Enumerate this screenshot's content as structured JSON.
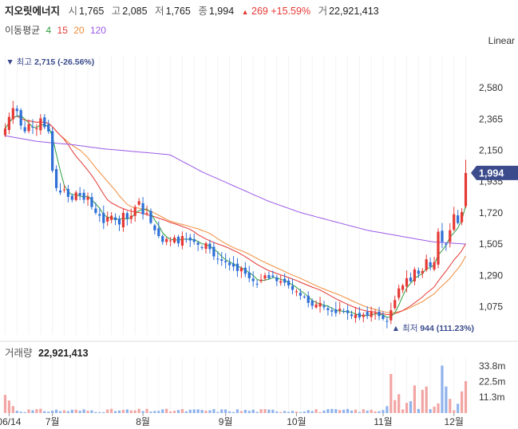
{
  "header": {
    "name": "지오릿에너지",
    "open_label": "시",
    "open": "1,765",
    "high_label": "고",
    "high": "2,085",
    "low_label": "저",
    "low": "1,765",
    "close_label": "종",
    "close": "1,994",
    "change_arrow": "▲",
    "change": "269",
    "change_pct": "+15.59%",
    "volume_label": "거",
    "volume": "22,921,413"
  },
  "ma_legend": {
    "label": "이동평균",
    "periods": [
      {
        "period": "4",
        "color": "#2e9e3f"
      },
      {
        "period": "15",
        "color": "#e53935"
      },
      {
        "period": "20",
        "color": "#f08c3a"
      },
      {
        "period": "120",
        "color": "#9b59e6"
      }
    ]
  },
  "scale_button": "Linear",
  "volume_panel": {
    "label": "거래량",
    "value": "22,921,413"
  },
  "colors": {
    "up": "#e53935",
    "down": "#2f6fd6",
    "price_tag": "#3b4b8c",
    "grid": "#eeeeee"
  },
  "chart_data": {
    "type": "candlestick",
    "price_axis": {
      "ticks": [
        1075,
        1290,
        1505,
        1720,
        1935,
        2150,
        2365,
        2580
      ],
      "labels": [
        "1,075",
        "1,290",
        "1,505",
        "1,720",
        "1,935",
        "2,150",
        "2,365",
        "2,580"
      ],
      "range": [
        880,
        2800
      ]
    },
    "x_labels": [
      {
        "label": "06/14",
        "index": 1
      },
      {
        "label": "7월",
        "index": 12
      },
      {
        "label": "8월",
        "index": 35
      },
      {
        "label": "9월",
        "index": 56
      },
      {
        "label": "10월",
        "index": 74
      },
      {
        "label": "11월",
        "index": 96
      },
      {
        "label": "12월",
        "index": 114
      }
    ],
    "high_annotation": {
      "label": "최고",
      "value": "2,715",
      "pct": "(-26.56%)",
      "index": 1,
      "price": 2715
    },
    "low_annotation": {
      "label": "최저",
      "value": "944",
      "pct": "(111.23%)",
      "index": 99,
      "price": 944
    },
    "last_price_tag": "1,994",
    "volume_axis": {
      "ticks": [
        11.3,
        22.5,
        33.8
      ],
      "labels": [
        "11.3m",
        "22.5m",
        "33.8m"
      ],
      "range": [
        0,
        40
      ]
    },
    "closes": [
      2300,
      2380,
      2440,
      2420,
      2320,
      2280,
      2330,
      2310,
      2300,
      2370,
      2310,
      2280,
      2010,
      1890,
      1860,
      1880,
      1830,
      1810,
      1860,
      1840,
      1810,
      1830,
      1760,
      1720,
      1700,
      1650,
      1690,
      1700,
      1670,
      1640,
      1720,
      1680,
      1700,
      1760,
      1800,
      1710,
      1720,
      1650,
      1600,
      1560,
      1520,
      1540,
      1530,
      1550,
      1510,
      1560,
      1540,
      1530,
      1520,
      1500,
      1480,
      1510,
      1470,
      1420,
      1400,
      1390,
      1380,
      1360,
      1350,
      1320,
      1340,
      1300,
      1270,
      1250,
      1230,
      1260,
      1290,
      1270,
      1280,
      1250,
      1250,
      1240,
      1220,
      1190,
      1180,
      1150,
      1140,
      1100,
      1080,
      1090,
      1100,
      1070,
      1050,
      1040,
      1030,
      1060,
      1040,
      1030,
      1010,
      1020,
      1000,
      1020,
      1010,
      1040,
      1030,
      1010,
      990,
      970,
      1050,
      1120,
      1200,
      1220,
      1270,
      1250,
      1330,
      1300,
      1320,
      1400,
      1350,
      1380,
      1590,
      1520,
      1500,
      1600,
      1710,
      1650,
      1725,
      1994
    ],
    "ma120": [
      2250,
      2210,
      2190,
      2160,
      2140,
      2120,
      2000,
      1900,
      1800,
      1720,
      1660,
      1600,
      1560,
      1520,
      1505
    ]
  }
}
